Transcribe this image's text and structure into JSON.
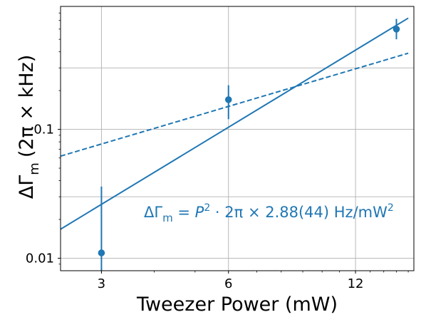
{
  "chart_data": {
    "type": "scatter",
    "xscale": "log",
    "yscale": "log",
    "xlim": [
      2.4,
      16.5
    ],
    "ylim": [
      0.008,
      0.9
    ],
    "xticks": [
      3,
      6,
      12
    ],
    "xtick_labels": [
      "3",
      "6",
      "12"
    ],
    "yticks": [
      0.01,
      0.1
    ],
    "ytick_labels": [
      "0.01",
      "0.1"
    ],
    "grid": true,
    "xlabel": "Tweezer Power (mW)",
    "ylabel": {
      "main": "ΔΓ",
      "sub": "m",
      "unit": "(2π × kHz)"
    },
    "annotation": {
      "lhs": "ΔΓ",
      "lhs_sub": "m",
      "eq": " = ",
      "var": "P",
      "exp": "2",
      "rhs": " · 2π × 2.88(44) Hz/mW",
      "rhs_exp": "2",
      "color": "#1f77b4"
    },
    "color": "#1f77b4",
    "points": [
      {
        "x": 3,
        "y": 0.011,
        "yerr_low": 0.0033,
        "yerr_high": 0.036
      },
      {
        "x": 6,
        "y": 0.17,
        "yerr_low": 0.12,
        "yerr_high": 0.22
      },
      {
        "x": 15,
        "y": 0.6,
        "yerr_low": 0.5,
        "yerr_high": 0.72
      }
    ],
    "fit_lines": [
      {
        "style": "solid",
        "from": [
          2.4,
          0.0168
        ],
        "to": [
          16,
          0.73
        ]
      },
      {
        "style": "dashed",
        "from": [
          2.4,
          0.062
        ],
        "to": [
          16,
          0.39
        ]
      }
    ]
  }
}
